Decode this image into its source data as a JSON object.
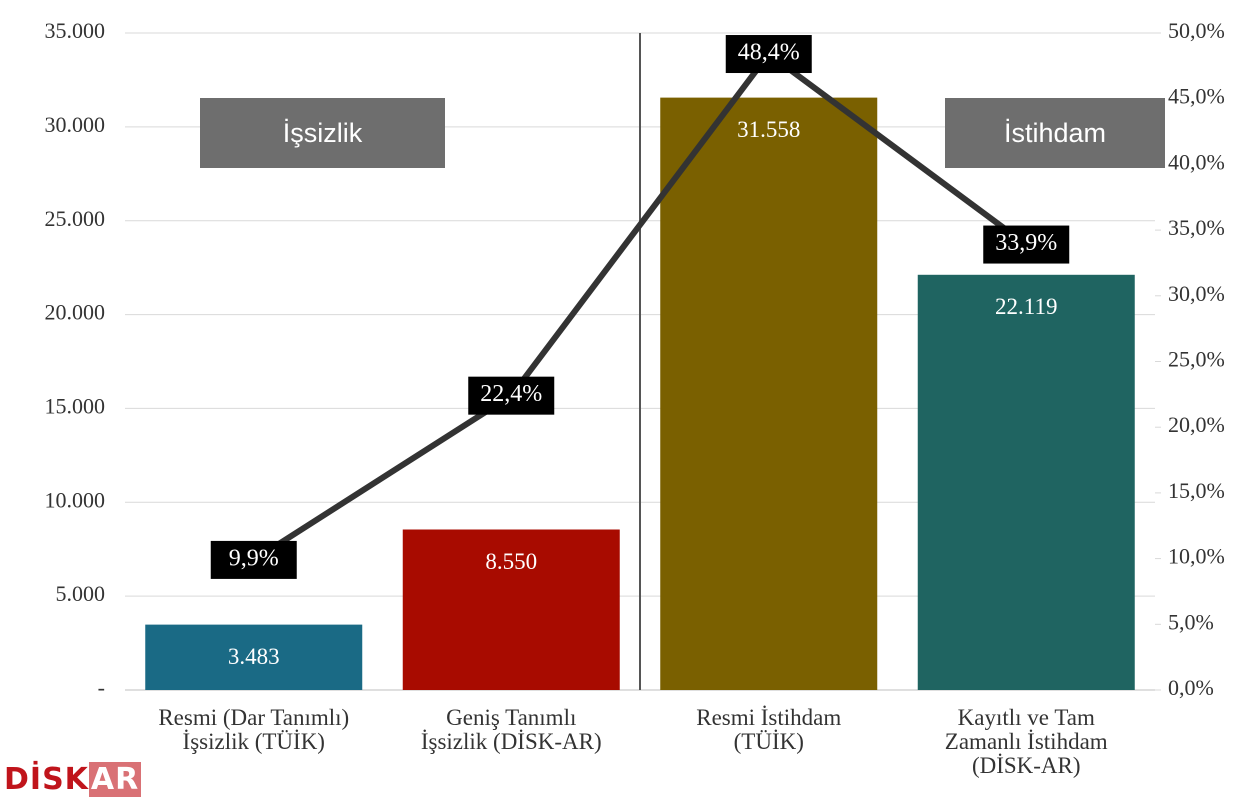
{
  "chart_data": {
    "type": "bar_line",
    "categories": [
      "Resmi (Dar Tanımlı)\nİşsizlik (TÜİK)",
      "Geniş Tanımlı\nİşsizlik (DİSK-AR)",
      "Resmi İstihdam\n(TÜİK)",
      "Kayıtlı ve Tam\nZamanlı İstihdam\n(DİSK-AR)"
    ],
    "series": [
      {
        "name": "Bars",
        "type": "bar",
        "colors": [
          "#1a6a85",
          "#a80b00",
          "#7a6000",
          "#1f6461"
        ],
        "values": [
          3483,
          8550,
          31558,
          22119
        ],
        "value_labels": [
          "3.483",
          "8.550",
          "31.558",
          "22.119"
        ]
      },
      {
        "name": "Line",
        "type": "line",
        "axis": "y2",
        "color": "#333333",
        "values": [
          9.9,
          22.4,
          48.4,
          33.9
        ],
        "value_labels": [
          "9,9%",
          "22,4%",
          "48,4%",
          "33,9%"
        ]
      }
    ],
    "ylim": [
      0,
      35000
    ],
    "yticks": [
      {
        "value": 0,
        "label": "-"
      },
      {
        "value": 5000,
        "label": "5.000"
      },
      {
        "value": 10000,
        "label": "10.000"
      },
      {
        "value": 15000,
        "label": "15.000"
      },
      {
        "value": 20000,
        "label": "20.000"
      },
      {
        "value": 25000,
        "label": "25.000"
      },
      {
        "value": 30000,
        "label": "30.000"
      },
      {
        "value": 35000,
        "label": "35.000"
      }
    ],
    "y2lim": [
      0,
      50
    ],
    "y2ticks": [
      {
        "value": 0,
        "label": "0,0%"
      },
      {
        "value": 5,
        "label": "5,0%"
      },
      {
        "value": 10,
        "label": "10,0%"
      },
      {
        "value": 15,
        "label": "15,0%"
      },
      {
        "value": 20,
        "label": "20,0%"
      },
      {
        "value": 25,
        "label": "25,0%"
      },
      {
        "value": 30,
        "label": "30,0%"
      },
      {
        "value": 35,
        "label": "35,0%"
      },
      {
        "value": 40,
        "label": "40,0%"
      },
      {
        "value": 45,
        "label": "45,0%"
      },
      {
        "value": 50,
        "label": "50,0%"
      }
    ],
    "grid": true,
    "annotations": [
      "İşsizlik",
      "İstihdam"
    ],
    "logo": {
      "left": "DİSK",
      "right": "AR"
    }
  }
}
